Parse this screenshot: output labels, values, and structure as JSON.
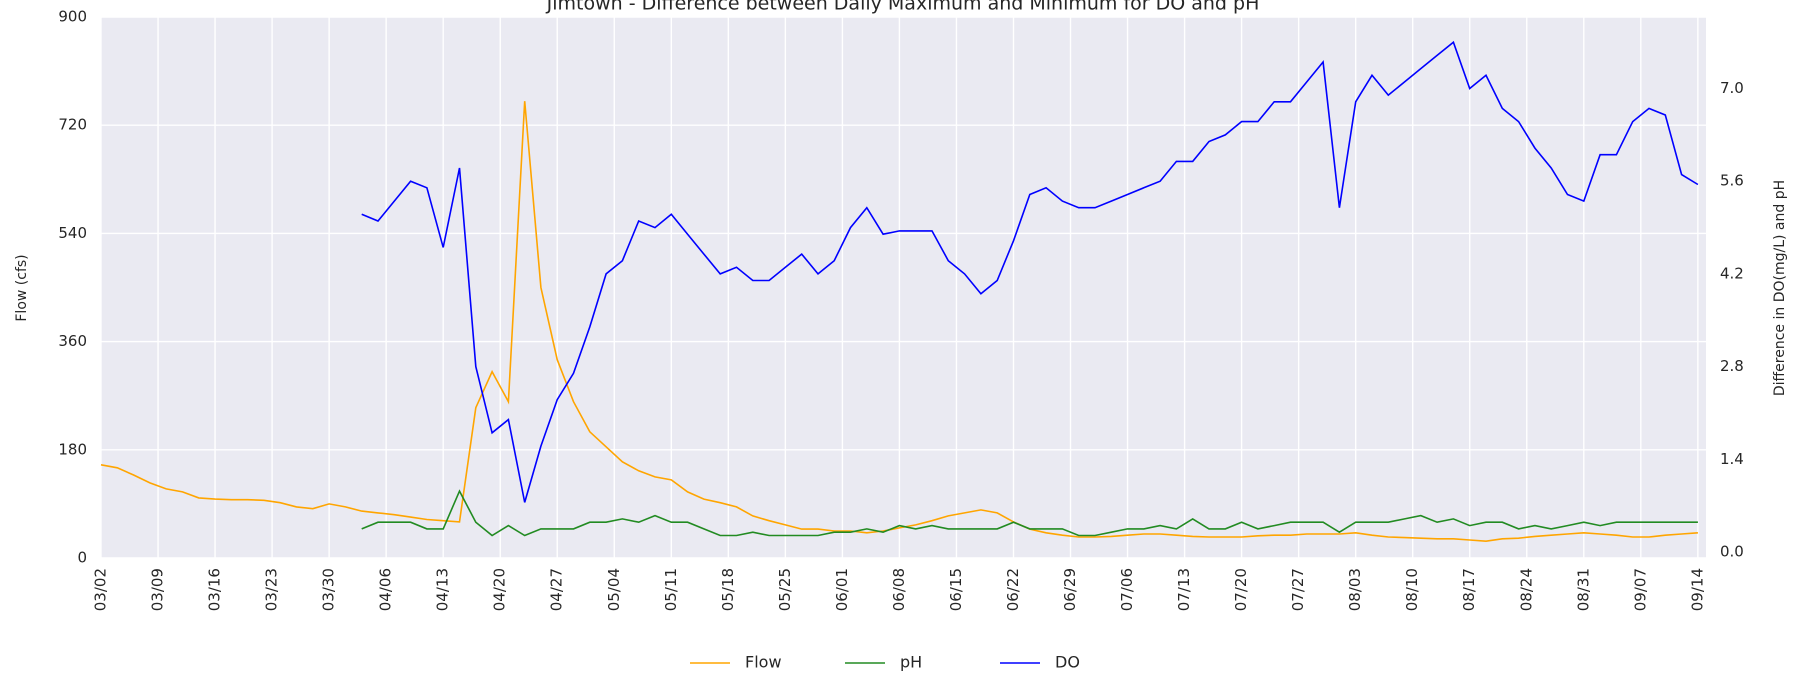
{
  "chart_data": {
    "type": "line",
    "title": "Jimtown - Difference between Daily Maximum and Minimum for DO and pH",
    "y_label": "Flow (cfs)",
    "y2_label": "Difference in DO(mg/L) and pH",
    "x": [
      "03/02",
      "03/04",
      "03/06",
      "03/08",
      "03/10",
      "03/12",
      "03/14",
      "03/16",
      "03/18",
      "03/20",
      "03/22",
      "03/24",
      "03/26",
      "03/28",
      "03/30",
      "04/01",
      "04/03",
      "04/05",
      "04/07",
      "04/09",
      "04/11",
      "04/13",
      "04/15",
      "04/17",
      "04/19",
      "04/21",
      "04/23",
      "04/25",
      "04/27",
      "04/29",
      "05/01",
      "05/03",
      "05/05",
      "05/07",
      "05/09",
      "05/11",
      "05/13",
      "05/15",
      "05/17",
      "05/19",
      "05/21",
      "05/23",
      "05/25",
      "05/27",
      "05/29",
      "05/31",
      "06/02",
      "06/04",
      "06/06",
      "06/08",
      "06/10",
      "06/12",
      "06/14",
      "06/16",
      "06/18",
      "06/20",
      "06/22",
      "06/24",
      "06/26",
      "06/28",
      "06/30",
      "07/02",
      "07/04",
      "07/06",
      "07/08",
      "07/10",
      "07/12",
      "07/14",
      "07/16",
      "07/18",
      "07/20",
      "07/22",
      "07/24",
      "07/26",
      "07/28",
      "07/30",
      "08/01",
      "08/03",
      "08/05",
      "08/07",
      "08/09",
      "08/11",
      "08/13",
      "08/15",
      "08/17",
      "08/19",
      "08/21",
      "08/23",
      "08/25",
      "08/27",
      "08/29",
      "08/31",
      "09/02",
      "09/04",
      "09/06",
      "09/08",
      "09/10",
      "09/12",
      "09/14"
    ],
    "series": [
      {
        "name": "Flow",
        "color": "#ffa500",
        "values": [
          155,
          150,
          138,
          125,
          115,
          110,
          100,
          98,
          97,
          97,
          96,
          92,
          85,
          82,
          90,
          85,
          78,
          75,
          72,
          68,
          64,
          62,
          60,
          250,
          310,
          260,
          760,
          450,
          330,
          260,
          210,
          185,
          160,
          145,
          135,
          130,
          110,
          98,
          92,
          85,
          70,
          62,
          55,
          48,
          48,
          45,
          45,
          42,
          45,
          50,
          55,
          62,
          70,
          75,
          80,
          75,
          60,
          48,
          42,
          38,
          35,
          35,
          36,
          38,
          40,
          40,
          38,
          36,
          35,
          35,
          35,
          37,
          38,
          38,
          40,
          40,
          40,
          42,
          38,
          35,
          34,
          33,
          32,
          32,
          30,
          28,
          32,
          33,
          36,
          38,
          40,
          42,
          40,
          38,
          35,
          35,
          38,
          40,
          42
        ]
      },
      {
        "name": "pH",
        "color": "#228b22",
        "axis": "y2",
        "values": [
          null,
          null,
          null,
          null,
          null,
          null,
          null,
          null,
          null,
          null,
          null,
          null,
          null,
          null,
          null,
          null,
          0.35,
          0.45,
          0.45,
          0.45,
          0.35,
          0.35,
          0.92,
          0.45,
          0.25,
          0.4,
          0.25,
          0.35,
          0.35,
          0.35,
          0.45,
          0.45,
          0.5,
          0.45,
          0.55,
          0.45,
          0.45,
          0.35,
          0.25,
          0.25,
          0.3,
          0.25,
          0.25,
          0.25,
          0.25,
          0.3,
          0.3,
          0.35,
          0.3,
          0.4,
          0.35,
          0.4,
          0.35,
          0.35,
          0.35,
          0.35,
          0.45,
          0.35,
          0.35,
          0.35,
          0.25,
          0.25,
          0.3,
          0.35,
          0.35,
          0.4,
          0.35,
          0.5,
          0.35,
          0.35,
          0.45,
          0.35,
          0.4,
          0.45,
          0.45,
          0.45,
          0.3,
          0.45,
          0.45,
          0.45,
          0.5,
          0.55,
          0.45,
          0.5,
          0.4,
          0.45,
          0.45,
          0.35,
          0.4,
          0.35,
          0.4,
          0.45,
          0.4,
          0.45,
          0.45,
          0.45,
          0.45,
          0.45,
          0.45
        ]
      },
      {
        "name": "DO",
        "color": "#0000ff",
        "axis": "y2",
        "values": [
          null,
          null,
          null,
          null,
          null,
          null,
          null,
          null,
          null,
          null,
          null,
          null,
          null,
          null,
          null,
          null,
          5.1,
          5.0,
          5.3,
          5.6,
          5.5,
          4.6,
          5.8,
          2.8,
          1.8,
          2.0,
          0.75,
          1.6,
          2.3,
          2.7,
          3.4,
          4.2,
          4.4,
          5.0,
          4.9,
          5.1,
          4.8,
          4.5,
          4.2,
          4.3,
          4.1,
          4.1,
          4.3,
          4.5,
          4.2,
          4.4,
          4.9,
          5.2,
          4.8,
          4.85,
          4.85,
          4.85,
          4.4,
          4.2,
          3.9,
          4.1,
          4.7,
          5.4,
          5.5,
          5.3,
          5.2,
          5.2,
          5.3,
          5.4,
          5.5,
          5.6,
          5.9,
          5.9,
          6.2,
          6.3,
          6.5,
          6.5,
          6.8,
          6.8,
          7.1,
          7.4,
          5.2,
          6.8,
          7.2,
          6.9,
          7.1,
          7.3,
          7.5,
          7.7,
          7.0,
          7.2,
          6.7,
          6.5,
          6.1,
          5.8,
          5.4,
          5.3,
          6.0,
          6.0,
          6.5,
          6.7,
          6.6,
          5.7,
          5.55
        ]
      }
    ],
    "xlim": [
      "03/02",
      "09/15"
    ],
    "xticks": [
      "03/02",
      "03/09",
      "03/16",
      "03/23",
      "03/30",
      "04/06",
      "04/13",
      "04/20",
      "04/27",
      "05/04",
      "05/11",
      "05/18",
      "05/25",
      "06/01",
      "06/08",
      "06/15",
      "06/22",
      "06/29",
      "07/06",
      "07/13",
      "07/20",
      "07/27",
      "08/03",
      "08/10",
      "08/17",
      "08/24",
      "08/31",
      "09/07",
      "09/14"
    ],
    "ylim": [
      0,
      900
    ],
    "yticks": [
      0,
      180,
      360,
      540,
      720,
      900
    ],
    "y2lim": [
      -0.09,
      8.08
    ],
    "y2ticks": [
      {
        "value": 0,
        "label": "0.0"
      },
      1.4,
      2.8,
      4.2,
      5.6,
      {
        "value": 7,
        "label": "7.0"
      }
    ],
    "grid": true,
    "legend": "bottom"
  }
}
